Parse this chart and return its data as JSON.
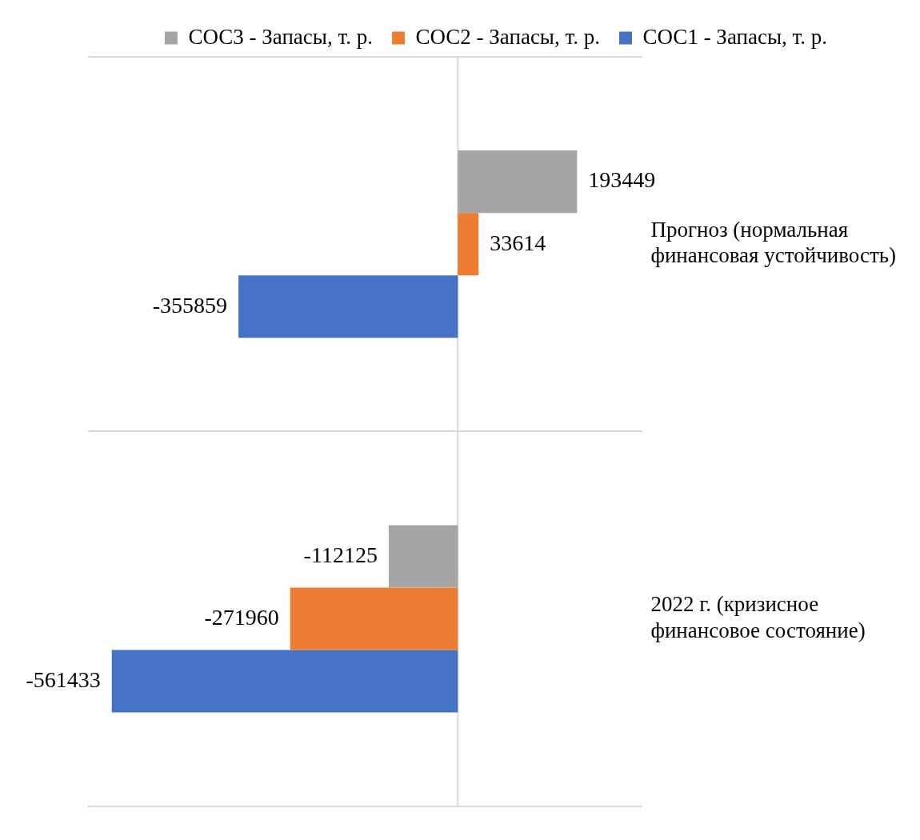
{
  "chart_data": {
    "type": "bar",
    "orientation": "horizontal",
    "categories": [
      "Прогноз (нормальная финансовая устойчивость)",
      "2022 г. (кризисное финансовое состояние)"
    ],
    "series": [
      {
        "name": "СОС3 - Запасы, т. р.",
        "color": "#a5a5a5",
        "values": [
          193449,
          -112125
        ]
      },
      {
        "name": "СОС2 - Запасы, т. р.",
        "color": "#ed7d31",
        "values": [
          33614,
          -271960
        ]
      },
      {
        "name": "СОС1 - Запасы, т. р.",
        "color": "#4472c4",
        "values": [
          -355859,
          -561433
        ]
      }
    ],
    "xlim": [
      -600000,
      300000
    ],
    "data_labels": true,
    "grid": "y",
    "legend": "top",
    "tick_labels": "y"
  }
}
